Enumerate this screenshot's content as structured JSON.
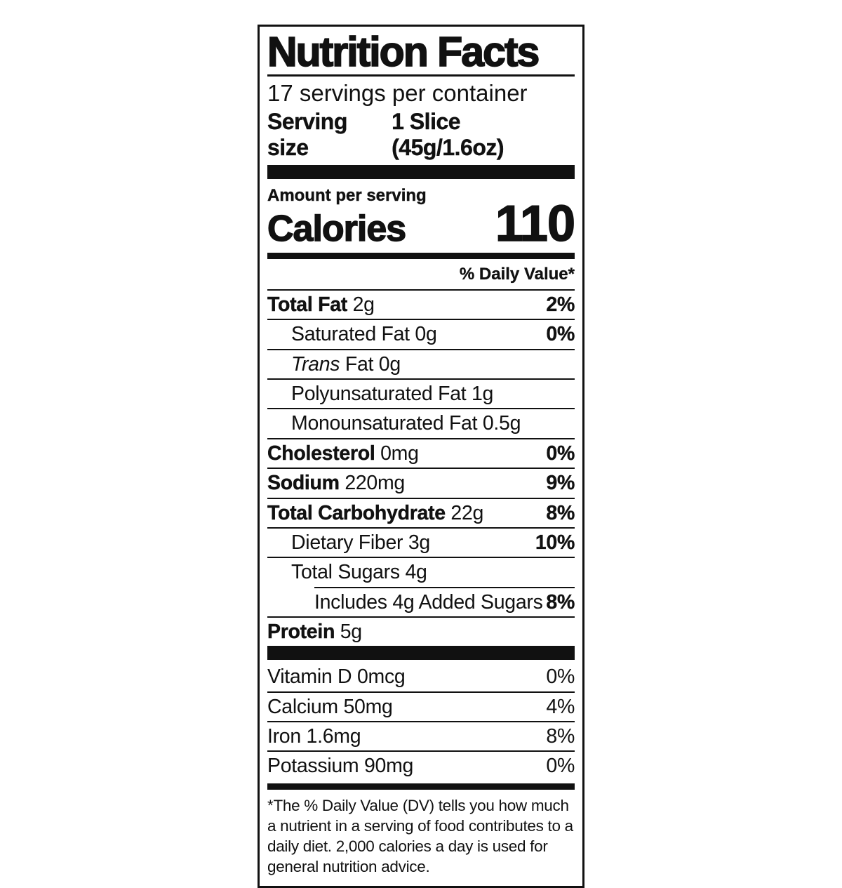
{
  "colors": {
    "ink": "#111111",
    "paper": "#ffffff"
  },
  "label": {
    "title": "Nutrition Facts",
    "servings_per_container": "17 servings per container",
    "serving_size": {
      "label": "Serving size",
      "value": "1 Slice (45g/1.6oz)"
    },
    "amount_per_serving": "Amount per serving",
    "calories": {
      "label": "Calories",
      "value": "110"
    },
    "daily_value_header": "% Daily Value*",
    "nutrients": [
      {
        "name": "Total Fat",
        "amount": "2g",
        "dv": "2%",
        "bold": true,
        "italic": false,
        "indent": 0
      },
      {
        "name": "Saturated Fat",
        "amount": "0g",
        "dv": "0%",
        "bold": false,
        "italic": false,
        "indent": 1
      },
      {
        "name": "Trans",
        "amount": "Fat 0g",
        "dv": "",
        "bold": false,
        "italic": true,
        "indent": 1
      },
      {
        "name": "Polyunsaturated Fat",
        "amount": "1g",
        "dv": "",
        "bold": false,
        "italic": false,
        "indent": 1
      },
      {
        "name": "Monounsaturated Fat",
        "amount": "0.5g",
        "dv": "",
        "bold": false,
        "italic": false,
        "indent": 1
      },
      {
        "name": "Cholesterol",
        "amount": "0mg",
        "dv": "0%",
        "bold": true,
        "italic": false,
        "indent": 0
      },
      {
        "name": "Sodium",
        "amount": "220mg",
        "dv": "9%",
        "bold": true,
        "italic": false,
        "indent": 0
      },
      {
        "name": "Total Carbohydrate",
        "amount": "22g",
        "dv": "8%",
        "bold": true,
        "italic": false,
        "indent": 0
      },
      {
        "name": "Dietary Fiber",
        "amount": "3g",
        "dv": "10%",
        "bold": false,
        "italic": false,
        "indent": 1
      },
      {
        "name": "Total Sugars",
        "amount": "4g",
        "dv": "",
        "bold": false,
        "italic": false,
        "indent": 1
      },
      {
        "name": "Includes 4g Added Sugars",
        "amount": "",
        "dv": "8%",
        "bold": false,
        "italic": false,
        "indent": 2
      },
      {
        "name": "Protein",
        "amount": "5g",
        "dv": "",
        "bold": true,
        "italic": false,
        "indent": 0
      }
    ],
    "micronutrients": [
      {
        "name": "Vitamin D",
        "amount": "0mcg",
        "dv": "0%"
      },
      {
        "name": "Calcium",
        "amount": "50mg",
        "dv": "4%"
      },
      {
        "name": "Iron",
        "amount": "1.6mg",
        "dv": "8%"
      },
      {
        "name": "Potassium",
        "amount": "90mg",
        "dv": "0%"
      }
    ],
    "footnote": "*The % Daily Value (DV) tells you how much a nutrient in a serving of food contributes to a daily diet. 2,000 calories a day is used for general nutrition advice."
  }
}
